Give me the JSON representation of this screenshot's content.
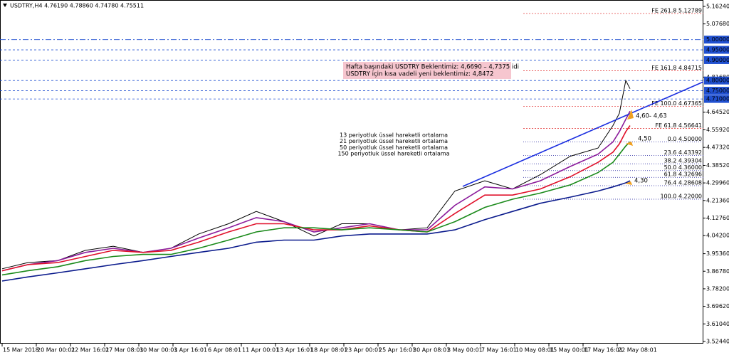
{
  "chart_data": {
    "type": "line",
    "title": "USDTRY,H4  4.76190 4.78860 4.74780 4.75511",
    "x": [
      1,
      13,
      27,
      40,
      53,
      67,
      80,
      93,
      107,
      120,
      133,
      147,
      160,
      173,
      187,
      200,
      213,
      227,
      240,
      253,
      267,
      280,
      287,
      290,
      293,
      295
    ],
    "xlim": [
      0,
      329.33
    ],
    "xticks": [
      {
        "value": 1,
        "label": "15 Mar 2018"
      },
      {
        "value": 17,
        "label": "20 Mar 00:01"
      },
      {
        "value": 33,
        "label": "22 Mar 16:01"
      },
      {
        "value": 49,
        "label": "27 Mar 08:01"
      },
      {
        "value": 65,
        "label": "30 Mar 00:01"
      },
      {
        "value": 81,
        "label": "3 Apr 16:01"
      },
      {
        "value": 97,
        "label": "6 Apr 08:01"
      },
      {
        "value": 113,
        "label": "11 Apr 00:01"
      },
      {
        "value": 129,
        "label": "13 Apr 16:01"
      },
      {
        "value": 145,
        "label": "18 Apr 08:01"
      },
      {
        "value": 161,
        "label": "23 Apr 00:01"
      },
      {
        "value": 177,
        "label": "25 Apr 16:01"
      },
      {
        "value": 193,
        "label": "30 Apr 08:01"
      },
      {
        "value": 209,
        "label": "3 May 00:01"
      },
      {
        "value": 225,
        "label": "7 May 16:01"
      },
      {
        "value": 241,
        "label": "10 May 08:01"
      },
      {
        "value": 257,
        "label": "15 May 00:01"
      },
      {
        "value": 273,
        "label": "17 May 16:01"
      },
      {
        "value": 289,
        "label": "22 May 08:01"
      }
    ],
    "ylim": [
      3.514,
      5.1937
    ],
    "yticks": [
      {
        "value": 5.1624,
        "label": "5.16240"
      },
      {
        "value": 5.0768,
        "label": "5.07680"
      },
      {
        "value": 4.8168,
        "label": "4.81680"
      },
      {
        "value": 4.6452,
        "label": "4.64520"
      },
      {
        "value": 4.5592,
        "label": "4.55920"
      },
      {
        "value": 4.4732,
        "label": "4.47320"
      },
      {
        "value": 4.3852,
        "label": "4.38520"
      },
      {
        "value": 4.2996,
        "label": "4.29960"
      },
      {
        "value": 4.2136,
        "label": "4.21360"
      },
      {
        "value": 4.1276,
        "label": "4.12760"
      },
      {
        "value": 4.042,
        "label": "4.04200"
      },
      {
        "value": 3.9536,
        "label": "3.95360"
      },
      {
        "value": 3.8678,
        "label": "3.86780"
      },
      {
        "value": 3.782,
        "label": "3.78200"
      },
      {
        "value": 3.6962,
        "label": "3.69620"
      },
      {
        "value": 3.6104,
        "label": "3.61040"
      },
      {
        "value": 3.5244,
        "label": "3.52440"
      }
    ],
    "series": [
      {
        "color": "#000000",
        "values": [
          3.88,
          3.91,
          3.92,
          3.97,
          3.99,
          3.96,
          3.98,
          4.05,
          4.1,
          4.16,
          4.11,
          4.04,
          4.1,
          4.1,
          4.07,
          4.08,
          4.26,
          4.31,
          4.27,
          4.34,
          4.43,
          4.47,
          4.58,
          4.64,
          4.8,
          4.76
        ]
      },
      {
        "name": "13 periyotluk üssel hareketli ortalama",
        "color": "#8b1a9b",
        "values": [
          3.87,
          3.9,
          3.92,
          3.96,
          3.98,
          3.96,
          3.98,
          4.03,
          4.08,
          4.13,
          4.11,
          4.06,
          4.08,
          4.1,
          4.07,
          4.07,
          4.19,
          4.28,
          4.27,
          4.31,
          4.38,
          4.44,
          4.5,
          4.55,
          4.61,
          4.65
        ]
      },
      {
        "name": "21 periyotluk üssel hareketli ortalama",
        "color": "#e0102a",
        "values": [
          3.87,
          3.9,
          3.91,
          3.94,
          3.97,
          3.96,
          3.97,
          4.01,
          4.06,
          4.1,
          4.1,
          4.07,
          4.07,
          4.09,
          4.07,
          4.06,
          4.15,
          4.24,
          4.24,
          4.27,
          4.33,
          4.4,
          4.45,
          4.49,
          4.55,
          4.58
        ]
      },
      {
        "name": "50 periyotluk üssel hareketli ortalama",
        "color": "#1a8a1a",
        "values": [
          3.85,
          3.87,
          3.89,
          3.92,
          3.94,
          3.95,
          3.95,
          3.98,
          4.02,
          4.06,
          4.08,
          4.08,
          4.07,
          4.08,
          4.07,
          4.06,
          4.11,
          4.18,
          4.22,
          4.25,
          4.29,
          4.35,
          4.4,
          4.44,
          4.48,
          4.5
        ]
      },
      {
        "name": "150 periyotluk üssel hareketli ortalama",
        "color": "#0a1a8c",
        "values": [
          3.82,
          3.84,
          3.86,
          3.88,
          3.9,
          3.92,
          3.94,
          3.96,
          3.98,
          4.01,
          4.02,
          4.02,
          4.04,
          4.05,
          4.05,
          4.05,
          4.07,
          4.12,
          4.16,
          4.2,
          4.23,
          4.26,
          4.28,
          4.29,
          4.3,
          4.31
        ]
      }
    ],
    "levels": [
      {
        "value": 5.0,
        "label": "5.00000"
      },
      {
        "value": 4.95,
        "label": "4.95000"
      },
      {
        "value": 4.9,
        "label": "4.90000"
      },
      {
        "value": 4.8,
        "label": "4.80000"
      },
      {
        "value": 4.75,
        "label": "4.75000"
      },
      {
        "value": 4.71,
        "label": "4.71000"
      }
    ],
    "level_color": "#2050d0",
    "fib_expansion": [
      {
        "value": 5.12789,
        "label": "FE 261.8 5.12789"
      },
      {
        "value": 4.84715,
        "label": "FE 161.8 4.84715"
      },
      {
        "value": 4.67365,
        "label": "FE 100.0 4.67365"
      },
      {
        "value": 4.56641,
        "label": "FE 61.8 4.56641"
      }
    ],
    "fib_expansion_color": "#e02020",
    "fib_retracement": [
      {
        "value": 4.5,
        "label": "0.0 4.50000"
      },
      {
        "value": 4.43392,
        "label": "23.6 4.43392"
      },
      {
        "value": 4.39304,
        "label": "38.2 4.39304"
      },
      {
        "value": 4.36,
        "label": "50.0 4.36000"
      },
      {
        "value": 4.32696,
        "label": "61.8 4.32696"
      },
      {
        "value": 4.28608,
        "label": "76.4 4.28608"
      },
      {
        "value": 4.22,
        "label": "100.0 4.22000"
      }
    ],
    "fib_retracement_color": "#1a1a9a",
    "annotations": {
      "box_line1": "Hafta başındaki USDTRY Beklentimiz: 4,6690 – 4,7375 idi",
      "box_line2": "USDTRY için kısa vadeli yeni beklentimiz: 4,8472",
      "target1": "4,60- 4,63",
      "target2": "4,50",
      "target3": "4,30"
    }
  }
}
